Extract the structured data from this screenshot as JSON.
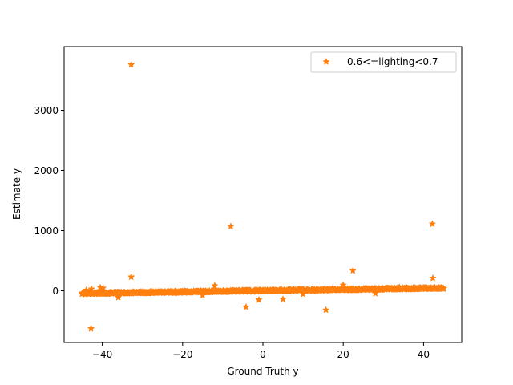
{
  "chart_data": {
    "type": "scatter",
    "title": "",
    "xlabel": "Ground Truth y",
    "ylabel": "Estimate y",
    "xlim": [
      -49.5,
      49.5
    ],
    "ylim": [
      -860,
      4060
    ],
    "xticks": [
      -40,
      -20,
      0,
      20,
      40
    ],
    "yticks": [
      0,
      1000,
      2000,
      3000
    ],
    "grid": false,
    "legend": {
      "position": "top-right",
      "entries": [
        "0.6<=lighting<0.7"
      ]
    },
    "series": [
      {
        "name": "0.6<=lighting<0.7",
        "color": "#ff7f0e",
        "marker": "star",
        "trend": {
          "x": [
            -45,
            45
          ],
          "y": [
            -45,
            45
          ],
          "band": 14,
          "count": 900
        },
        "outliers": {
          "x": [
            -32.8,
            -8,
            42.2,
            22.4,
            -32.8,
            42.3,
            20,
            -12,
            -42.7,
            -40.5,
            -39.8,
            -44,
            -4.2,
            -1,
            5,
            15.7,
            10,
            28,
            34,
            -36,
            -15
          ],
          "y": [
            3760,
            1070,
            1110,
            335,
            230,
            210,
            95,
            85,
            30,
            55,
            45,
            10,
            -270,
            -150,
            -140,
            -320,
            -55,
            -45,
            60,
            -110,
            -75
          ]
        },
        "low_outlier": {
          "x": -42.8,
          "y": -630
        }
      }
    ]
  }
}
